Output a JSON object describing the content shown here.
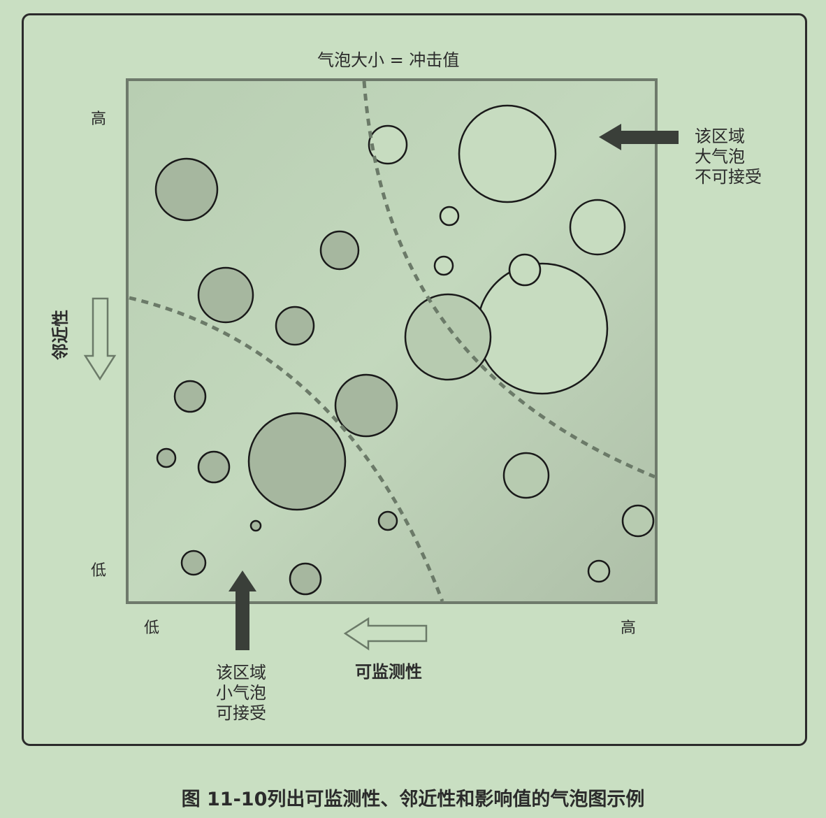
{
  "bubble_size_label": "气泡大小 = 冲击值",
  "y_axis": {
    "title": "邻近性",
    "high": "高",
    "low": "低"
  },
  "x_axis": {
    "title": "可监测性",
    "high": "高",
    "low": "低"
  },
  "note_large": [
    "该区域",
    "大气泡",
    "不可接受"
  ],
  "note_small": [
    "该区域",
    "小气泡",
    "可接受"
  ],
  "caption": "图 11-10列出可监测性、邻近性和影响值的气泡图示例",
  "colors": {
    "background": "#c9dfc2",
    "plot_fill": "#b9cfb3",
    "bubble_dark": "#a6b79f",
    "bubble_light": "#c7dcc0",
    "outline": "#1a1a1a",
    "dashed": "#6b7a68",
    "arrow_dark": "#3a3f39"
  }
}
